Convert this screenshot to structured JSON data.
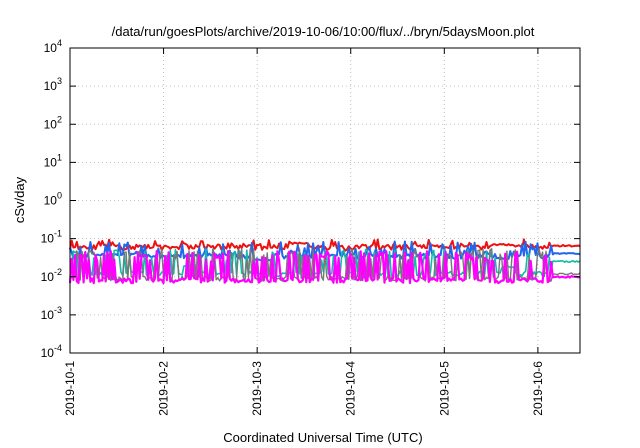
{
  "chart_data": {
    "type": "line",
    "title": "/data/run/goesPlots/archive/2019-10-06/10:00/flux/../bryn/5daysMoon.plot",
    "xlabel": "Coordinated Universal Time (UTC)",
    "ylabel": "cSv/day",
    "y_scale": "log",
    "ylim": [
      0.0001,
      10000
    ],
    "xlim": [
      0,
      5.45
    ],
    "grid": true,
    "x_ticks": [
      {
        "value": 0,
        "label": "2019-10-1"
      },
      {
        "value": 1,
        "label": "2019-10-2"
      },
      {
        "value": 2,
        "label": "2019-10-3"
      },
      {
        "value": 3,
        "label": "2019-10-4"
      },
      {
        "value": 4,
        "label": "2019-10-5"
      },
      {
        "value": 5,
        "label": "2019-10-6"
      }
    ],
    "y_ticks": [
      {
        "value": 0.0001,
        "base": "10",
        "exp": "-4"
      },
      {
        "value": 0.001,
        "base": "10",
        "exp": "-3"
      },
      {
        "value": 0.01,
        "base": "10",
        "exp": "-2"
      },
      {
        "value": 0.1,
        "base": "10",
        "exp": "-1"
      },
      {
        "value": 1,
        "base": "10",
        "exp": "0"
      },
      {
        "value": 10,
        "base": "10",
        "exp": "1"
      },
      {
        "value": 100,
        "base": "10",
        "exp": "2"
      },
      {
        "value": 1000,
        "base": "10",
        "exp": "3"
      },
      {
        "value": 10000,
        "base": "10",
        "exp": "4"
      }
    ],
    "series": [
      {
        "color": "#ee1111",
        "width": 2.0,
        "base": 0.06,
        "spike": 0.08,
        "spikeProb": 0.25,
        "seed": 11,
        "plateaus": [
          [
            2.35,
            2.55,
            0.075
          ],
          [
            4.5,
            4.75,
            0.07
          ],
          [
            5.15,
            5.45,
            0.065
          ]
        ]
      },
      {
        "color": "#2266ee",
        "width": 2.0,
        "base": 0.035,
        "spike": 0.07,
        "spikeProb": 0.28,
        "seed": 23,
        "plateaus": [
          [
            1.95,
            2.15,
            0.028
          ],
          [
            4.55,
            4.7,
            0.03
          ],
          [
            5.15,
            5.45,
            0.04
          ]
        ]
      },
      {
        "color": "#11bbaa",
        "width": 1.6,
        "base": 0.012,
        "spike": 0.045,
        "spikeProb": 0.3,
        "seed": 37,
        "plateaus": [
          [
            1.2,
            1.35,
            0.02
          ],
          [
            4.6,
            4.75,
            0.018
          ],
          [
            5.15,
            5.45,
            0.025
          ]
        ]
      },
      {
        "color": "#777777",
        "width": 1.4,
        "base": 0.009,
        "spike": 0.045,
        "spikeProb": 0.33,
        "seed": 41,
        "plateaus": [
          [
            5.15,
            5.45,
            0.012
          ]
        ]
      },
      {
        "color": "#ff00ff",
        "width": 2.2,
        "base": 0.008,
        "spike": 0.04,
        "spikeProb": 0.35,
        "seed": 53,
        "plateaus": [
          [
            5.15,
            5.45,
            0.01
          ]
        ]
      }
    ]
  }
}
